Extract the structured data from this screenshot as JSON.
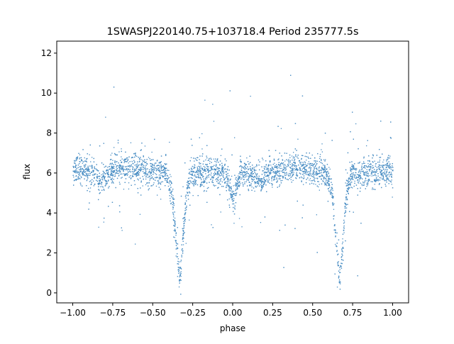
{
  "chart_data": {
    "type": "scatter",
    "title": "1SWASPJ220140.75+103718.4 Period 235777.5s",
    "xlabel": "phase",
    "ylabel": "flux",
    "xlim": [
      -1.1,
      1.1
    ],
    "ylim": [
      -0.5,
      12.6
    ],
    "x_ticks": [
      -1.0,
      -0.75,
      -0.5,
      -0.25,
      0.0,
      0.25,
      0.5,
      0.75,
      1.0
    ],
    "x_tick_labels": [
      "−1.00",
      "−0.75",
      "−0.50",
      "−0.25",
      "0.00",
      "0.25",
      "0.50",
      "0.75",
      "1.00"
    ],
    "y_ticks": [
      0,
      2,
      4,
      6,
      8,
      10,
      12
    ],
    "y_tick_labels": [
      "0",
      "2",
      "4",
      "6",
      "8",
      "10",
      "12"
    ],
    "grid": false,
    "legend": "none",
    "marker_color": "#4a8ec4",
    "series": [
      {
        "baseline_flux": 6.0,
        "phase_range": [
          -1.0,
          1.0
        ],
        "eclipses": [
          {
            "phase": -0.335,
            "min_flux": 0.4
          },
          {
            "phase": 0.665,
            "min_flux": 0.4
          }
        ],
        "secondary_dips": [
          {
            "phase": -0.835,
            "min_flux": 5.5
          },
          {
            "phase": -0.0,
            "min_flux": 4.6
          },
          {
            "phase": 0.165,
            "min_flux": 5.5
          }
        ],
        "profile": [
          [
            -1.0,
            6.1
          ],
          [
            -0.95,
            6.2
          ],
          [
            -0.9,
            6.0
          ],
          [
            -0.85,
            5.8
          ],
          [
            -0.835,
            5.5
          ],
          [
            -0.8,
            5.9
          ],
          [
            -0.75,
            6.2
          ],
          [
            -0.7,
            6.25
          ],
          [
            -0.6,
            6.3
          ],
          [
            -0.5,
            6.1
          ],
          [
            -0.42,
            6.0
          ],
          [
            -0.38,
            5.0
          ],
          [
            -0.36,
            3.0
          ],
          [
            -0.335,
            0.5
          ],
          [
            -0.31,
            3.0
          ],
          [
            -0.29,
            5.0
          ],
          [
            -0.26,
            6.0
          ],
          [
            -0.15,
            6.1
          ],
          [
            -0.05,
            6.0
          ],
          [
            0.0,
            4.8
          ],
          [
            0.05,
            6.0
          ],
          [
            0.15,
            5.8
          ],
          [
            0.165,
            5.5
          ],
          [
            0.2,
            5.9
          ],
          [
            0.3,
            6.2
          ],
          [
            0.4,
            6.3
          ],
          [
            0.5,
            6.2
          ],
          [
            0.58,
            6.0
          ],
          [
            0.62,
            5.0
          ],
          [
            0.64,
            3.0
          ],
          [
            0.665,
            0.5
          ],
          [
            0.69,
            3.0
          ],
          [
            0.71,
            5.0
          ],
          [
            0.74,
            6.0
          ],
          [
            0.85,
            6.0
          ],
          [
            1.0,
            6.1
          ]
        ]
      }
    ]
  }
}
